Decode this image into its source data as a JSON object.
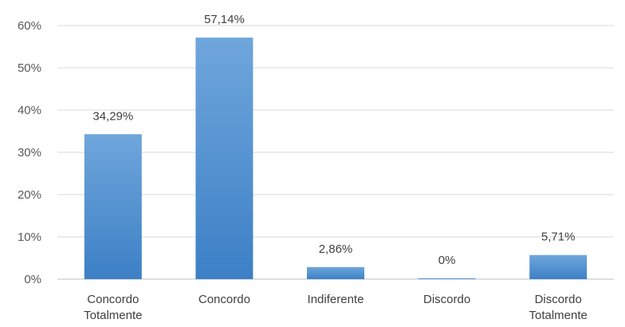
{
  "chart_data": {
    "type": "bar",
    "title": "",
    "xlabel": "",
    "ylabel": "",
    "categories": [
      [
        "Concordo",
        "Totalmente"
      ],
      [
        "Concordo"
      ],
      [
        "Indiferente"
      ],
      [
        "Discordo"
      ],
      [
        "Discordo",
        "Totalmente"
      ]
    ],
    "values": [
      34.29,
      57.14,
      2.86,
      0,
      5.71
    ],
    "data_labels": [
      "34,29%",
      "57,14%",
      "2,86%",
      "0%",
      "5,71%"
    ],
    "ylim": [
      0,
      60
    ],
    "yticks": [
      0,
      10,
      20,
      30,
      40,
      50,
      60
    ],
    "ytick_labels": [
      "0%",
      "10%",
      "20%",
      "30%",
      "40%",
      "50%",
      "60%"
    ],
    "grid": true,
    "legend": "none",
    "bar_color_top": "#6fa6dc",
    "bar_color_bottom": "#3d80c6"
  }
}
